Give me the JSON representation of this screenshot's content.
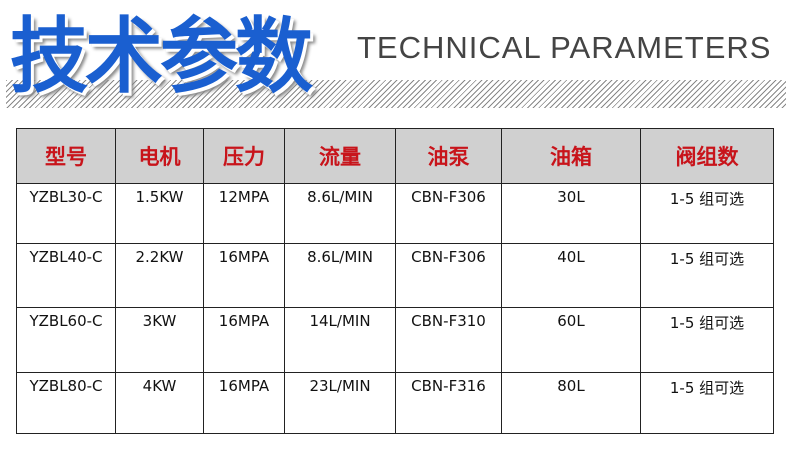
{
  "header": {
    "title_cn": "技术参数",
    "title_en": "TECHNICAL PARAMETERS"
  },
  "table": {
    "headers": [
      "型号",
      "电机",
      "压力",
      "流量",
      "油泵",
      "油箱",
      "阀组数"
    ],
    "rows": [
      [
        "YZBL30-C",
        "1.5KW",
        "12MPA",
        "8.6L/MIN",
        "CBN-F306",
        "30L",
        "1-5 组可选"
      ],
      [
        "YZBL40-C",
        "2.2KW",
        "16MPA",
        "8.6L/MIN",
        "CBN-F306",
        "40L",
        "1-5 组可选"
      ],
      [
        "YZBL60-C",
        "3KW",
        "16MPA",
        "14L/MIN",
        "CBN-F310",
        "60L",
        "1-5 组可选"
      ],
      [
        "YZBL80-C",
        "4KW",
        "16MPA",
        "23L/MIN",
        "CBN-F316",
        "80L",
        "1-5 组可选"
      ]
    ]
  },
  "colors": {
    "title_blue": "#1a5fd0",
    "header_red": "#c8141b",
    "header_bg": "#d0d0d0"
  }
}
